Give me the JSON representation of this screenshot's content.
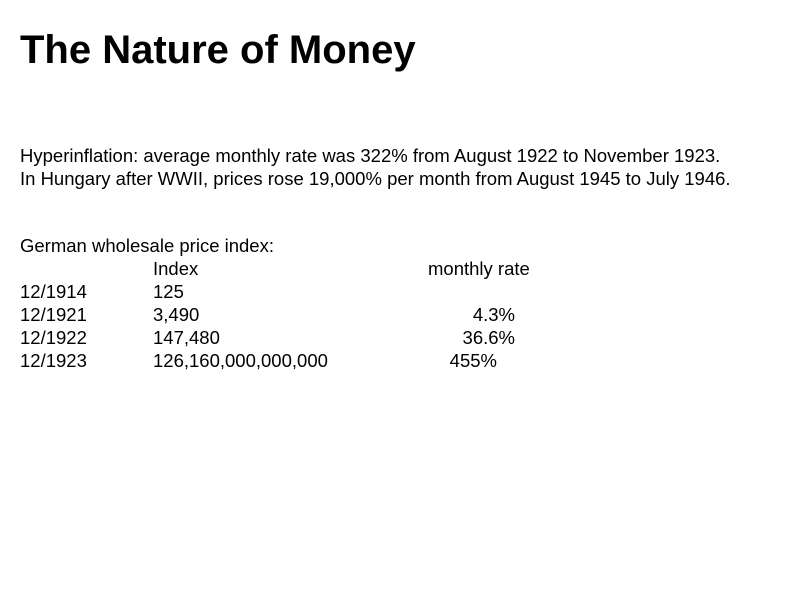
{
  "slide": {
    "title": "The Nature of Money",
    "paragraph": [
      "Hyperinflation: average monthly rate was 322% from August 1922 to November 1923.",
      "In Hungary after WWII, prices rose 19,000% per month from August 1945 to July 1946."
    ],
    "table": {
      "heading": "German wholesale price index:",
      "columns": [
        "Index",
        "monthly rate"
      ],
      "rows": [
        {
          "date": "12/1914",
          "index": "125",
          "rate": ""
        },
        {
          "date": "12/1921",
          "index": "3,490",
          "rate": "4.3%"
        },
        {
          "date": "12/1922",
          "index": "147,480",
          "rate": "36.6%"
        },
        {
          "date": "12/1923",
          "index": "126,160,000,000,000",
          "rate": "455%"
        }
      ]
    }
  }
}
